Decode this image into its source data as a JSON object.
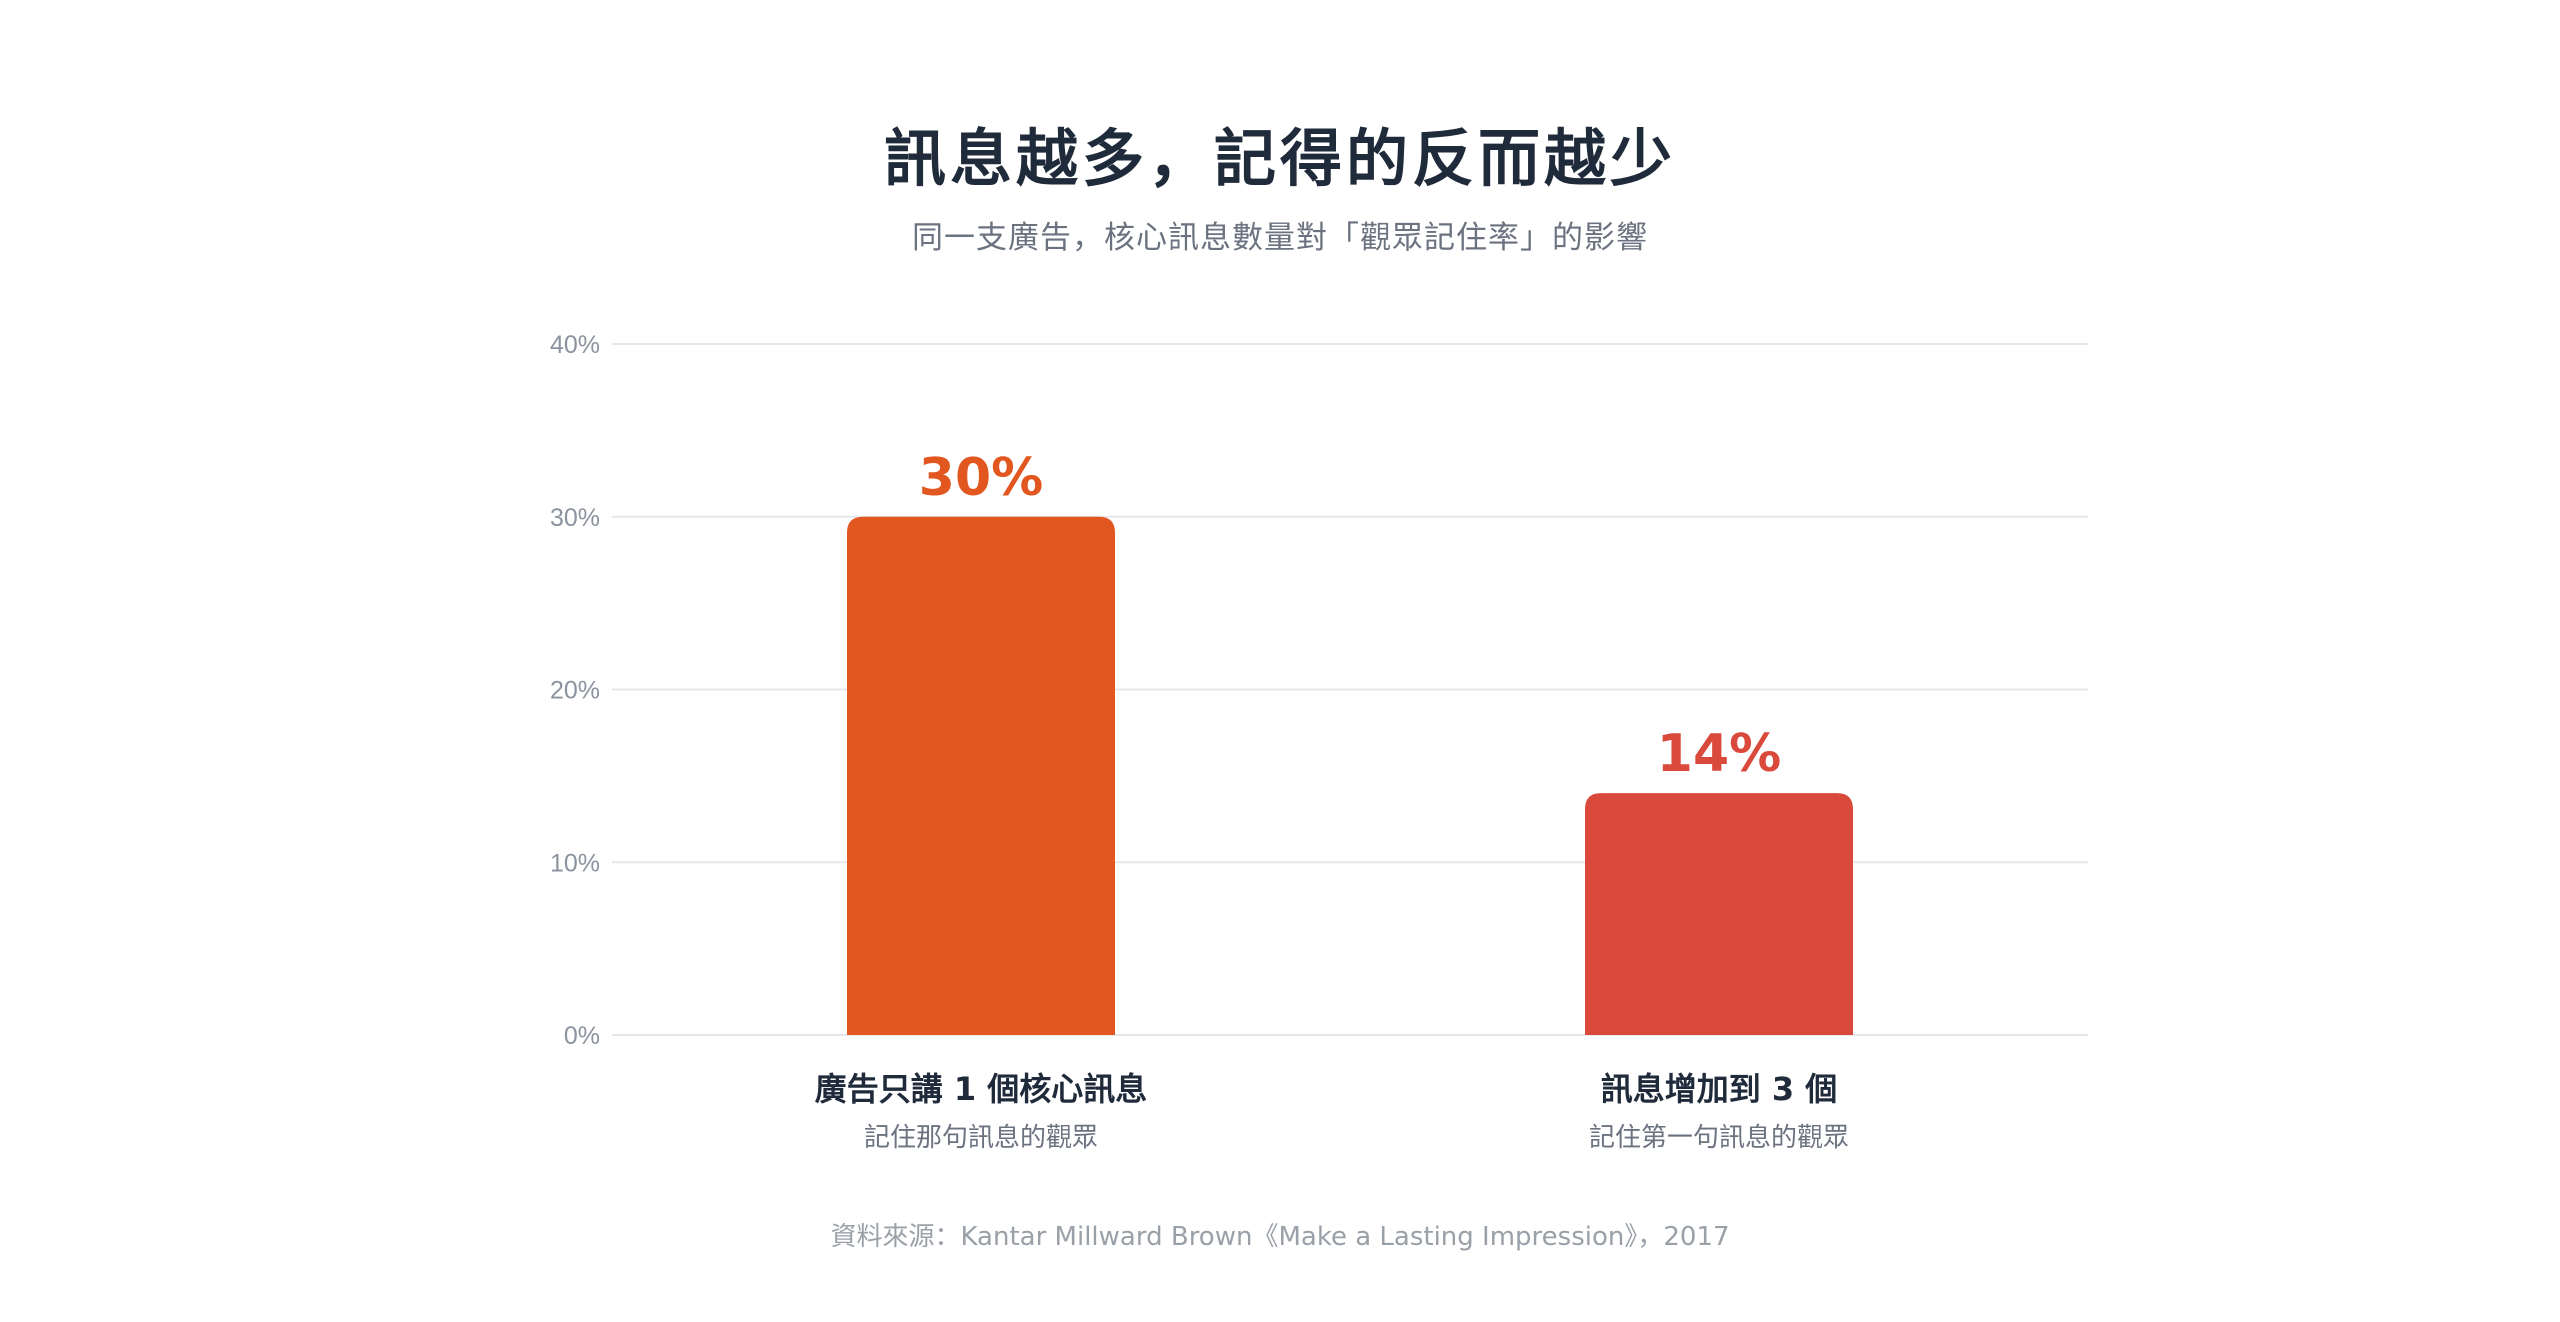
{
  "chart_data": {
    "type": "bar",
    "title": "訊息越多，記得的反而越少",
    "subtitle": "同一支廣告，核心訊息數量對「觀眾記住率」的影響",
    "categories": [
      "廣告只講 1 個核心訊息",
      "訊息增加到 3 個"
    ],
    "category_sublabels": [
      "記住那句訊息的觀眾",
      "記住第一句訊息的觀眾"
    ],
    "values": [
      30,
      14
    ],
    "value_labels": [
      "30%",
      "14%"
    ],
    "bar_colors": [
      "#e2561f",
      "#da4a3c"
    ],
    "ylim": [
      0,
      40
    ],
    "yticks": [
      0,
      10,
      20,
      30,
      40
    ],
    "ytick_labels": [
      "0%",
      "10%",
      "20%",
      "30%",
      "40%"
    ],
    "grid": true,
    "legend": "none",
    "source": "資料來源：Kantar Millward Brown《Make a Lasting Impression》，2017"
  }
}
